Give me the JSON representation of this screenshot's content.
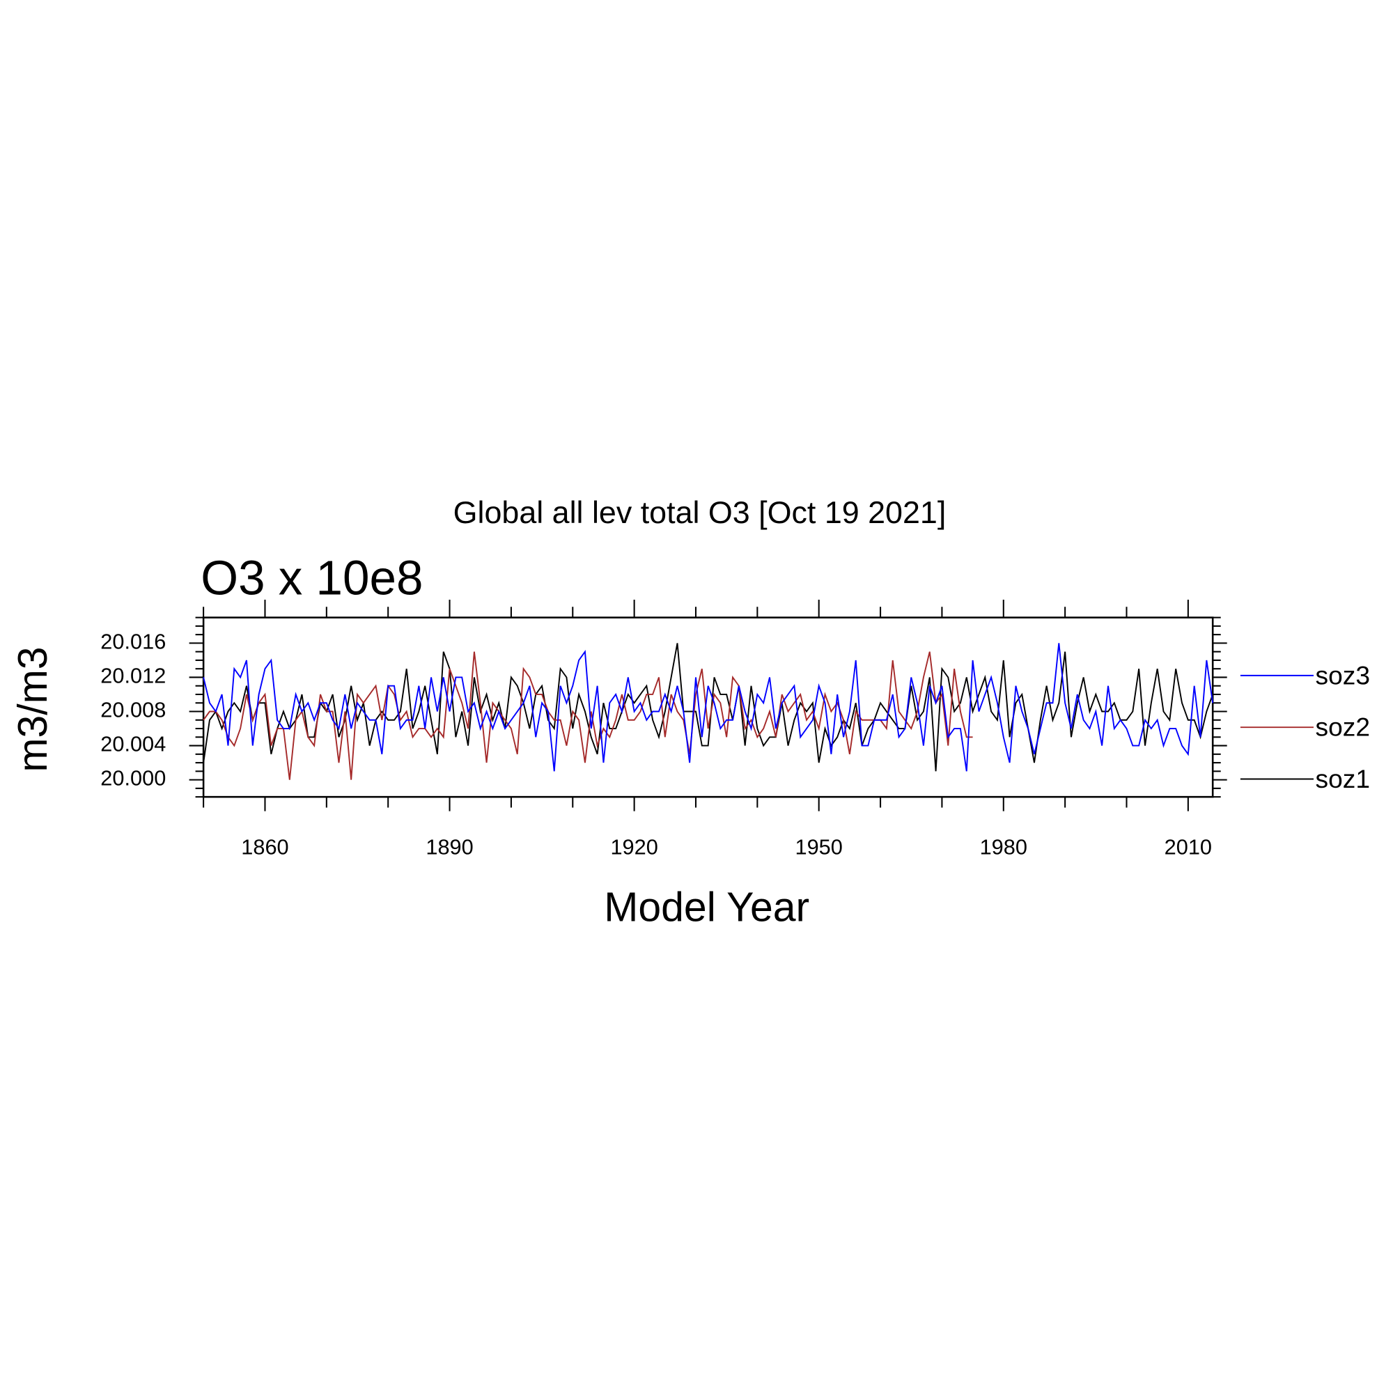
{
  "chart_data": {
    "type": "line",
    "title": "Global all lev total O3 [Oct 19 2021]",
    "subtitle": "O3 x 10e8",
    "ylabel": "m3/m3",
    "xlabel": "Model Year",
    "legend": "right",
    "xlim": [
      1850,
      2014
    ],
    "ylim": [
      19.998,
      20.019
    ],
    "xticks": [
      1860,
      1890,
      1920,
      1950,
      1980,
      2010
    ],
    "xminorticks": [
      1850,
      1870,
      1880,
      1900,
      1910,
      1930,
      1940,
      1960,
      1970,
      1990,
      2000
    ],
    "yticks": [
      {
        "value": 20,
        "label": "20.000"
      },
      20.004,
      20.008,
      20.012,
      20.016
    ],
    "yminorticks": [
      19.998,
      19.999,
      20.001,
      20.002,
      20.003,
      20.005,
      20.006,
      20.007,
      20.009,
      20.01,
      20.011,
      20.013,
      20.014,
      20.015,
      20.017,
      20.018,
      20.019
    ],
    "x": [
      1850,
      1851,
      1852,
      1853,
      1854,
      1855,
      1856,
      1857,
      1858,
      1859,
      1860,
      1861,
      1862,
      1863,
      1864,
      1865,
      1866,
      1867,
      1868,
      1869,
      1870,
      1871,
      1872,
      1873,
      1874,
      1875,
      1876,
      1877,
      1878,
      1879,
      1880,
      1881,
      1882,
      1883,
      1884,
      1885,
      1886,
      1887,
      1888,
      1889,
      1890,
      1891,
      1892,
      1893,
      1894,
      1895,
      1896,
      1897,
      1898,
      1899,
      1900,
      1901,
      1902,
      1903,
      1904,
      1905,
      1906,
      1907,
      1908,
      1909,
      1910,
      1911,
      1912,
      1913,
      1914,
      1915,
      1916,
      1917,
      1918,
      1919,
      1920,
      1921,
      1922,
      1923,
      1924,
      1925,
      1926,
      1927,
      1928,
      1929,
      1930,
      1931,
      1932,
      1933,
      1934,
      1935,
      1936,
      1937,
      1938,
      1939,
      1940,
      1941,
      1942,
      1943,
      1944,
      1945,
      1946,
      1947,
      1948,
      1949,
      1950,
      1951,
      1952,
      1953,
      1954,
      1955,
      1956,
      1957,
      1958,
      1959,
      1960,
      1961,
      1962,
      1963,
      1964,
      1965,
      1966,
      1967,
      1968,
      1969,
      1970,
      1971,
      1972,
      1973,
      1974,
      1975,
      1976,
      1977,
      1978,
      1979,
      1980,
      1981,
      1982,
      1983,
      1984,
      1985,
      1986,
      1987,
      1988,
      1989,
      1990,
      1991,
      1992,
      1993,
      1994,
      1995,
      1996,
      1997,
      1998,
      1999,
      2000,
      2001,
      2002,
      2003,
      2004,
      2005,
      2006,
      2007,
      2008,
      2009,
      2010,
      2011,
      2012,
      2013,
      2014
    ],
    "series": [
      {
        "name": "soz3",
        "color": "#0000ff",
        "values": [
          20.012,
          20.009,
          20.008,
          20.01,
          20.004,
          20.013,
          20.012,
          20.014,
          20.004,
          20.01,
          20.013,
          20.014,
          20.007,
          20.006,
          20.006,
          20.01,
          20.008,
          20.009,
          20.007,
          20.009,
          20.009,
          20.007,
          20.006,
          20.01,
          20.006,
          20.009,
          20.008,
          20.007,
          20.007,
          20.003,
          20.011,
          20.011,
          20.006,
          20.007,
          20.007,
          20.011,
          20.006,
          20.012,
          20.008,
          20.012,
          20.008,
          20.012,
          20.012,
          20.008,
          20.009,
          20.006,
          20.008,
          20.006,
          20.008,
          20.006,
          20.007,
          20.008,
          20.009,
          20.011,
          20.005,
          20.009,
          20.008,
          20.001,
          20.011,
          20.009,
          20.011,
          20.014,
          20.015,
          20.006,
          20.011,
          20.002,
          20.009,
          20.01,
          20.008,
          20.012,
          20.008,
          20.009,
          20.007,
          20.008,
          20.008,
          20.01,
          20.008,
          20.011,
          20.008,
          20.002,
          20.012,
          20.005,
          20.011,
          20.009,
          20.006,
          20.007,
          20.007,
          20.011,
          20.008,
          20.006,
          20.01,
          20.009,
          20.012,
          20.006,
          20.009,
          20.01,
          20.011,
          20.005,
          20.006,
          20.007,
          20.011,
          20.009,
          20.003,
          20.01,
          20.005,
          20.008,
          20.014,
          20.004,
          20.004,
          20.007,
          20.007,
          20.007,
          20.01,
          20.005,
          20.006,
          20.012,
          20.009,
          20.004,
          20.011,
          20.009,
          20.011,
          20.005,
          20.006,
          20.006,
          20.001,
          20.014,
          20.008,
          20.01,
          20.012,
          20.009,
          20.005,
          20.002,
          20.011,
          20.008,
          20.006,
          20.003,
          20.006,
          20.009,
          20.009,
          20.016,
          20.009,
          20.006,
          20.01,
          20.007,
          20.006,
          20.008,
          20.004,
          20.011,
          20.006,
          20.007,
          20.006,
          20.004,
          20.004,
          20.007,
          20.006,
          20.007,
          20.004,
          20.006,
          20.006,
          20.004,
          20.003,
          20.011,
          20.005,
          20.014,
          20.009
        ]
      },
      {
        "name": "soz2",
        "color": "#a52a2a",
        "values": [
          20.007,
          20.008,
          20.008,
          20.007,
          20.005,
          20.004,
          20.006,
          20.01,
          20.007,
          20.009,
          20.01,
          20.004,
          20.006,
          20.006,
          20.0,
          20.007,
          20.008,
          20.005,
          20.004,
          20.01,
          20.008,
          20.008,
          20.002,
          20.008,
          20.0,
          20.01,
          20.009,
          20.01,
          20.011,
          20.007,
          20.011,
          20.01,
          20.007,
          20.008,
          20.005,
          20.006,
          20.006,
          20.005,
          20.006,
          20.005,
          20.013,
          20.011,
          20.009,
          20.006,
          20.015,
          20.009,
          20.002,
          20.009,
          20.008,
          20.007,
          20.006,
          20.003,
          20.013,
          20.012,
          20.01,
          20.01,
          20.008,
          20.007,
          20.007,
          20.004,
          20.008,
          20.007,
          20.002,
          20.008,
          20.004,
          20.006,
          20.005,
          20.007,
          20.01,
          20.007,
          20.007,
          20.008,
          20.01,
          20.01,
          20.012,
          20.005,
          20.01,
          20.008,
          20.007,
          20.003,
          20.01,
          20.013,
          20.006,
          20.01,
          20.009,
          20.005,
          20.012,
          20.011,
          20.006,
          20.007,
          20.005,
          20.006,
          20.008,
          20.005,
          20.01,
          20.008,
          20.009,
          20.01,
          20.007,
          20.008,
          20.006,
          20.01,
          20.008,
          20.009,
          20.007,
          20.003,
          20.008,
          20.007,
          20.007,
          20.007,
          20.007,
          20.006,
          20.014,
          20.008,
          20.007,
          20.006,
          20.008,
          20.012,
          20.015,
          20.009,
          20.01,
          20.004,
          20.013,
          20.008,
          20.005,
          20.005,
          null,
          null,
          null,
          null,
          null,
          null,
          null,
          null,
          null,
          null,
          null,
          null,
          null,
          null,
          null,
          null,
          null,
          null,
          null,
          null,
          null,
          null,
          null,
          null,
          null,
          null,
          null,
          null,
          null,
          null,
          null,
          null,
          null,
          null,
          null,
          null,
          null,
          null,
          null
        ]
      },
      {
        "name": "soz1",
        "color": "#000000",
        "values": [
          20.002,
          20.007,
          20.008,
          20.006,
          20.008,
          20.009,
          20.008,
          20.011,
          20.007,
          20.009,
          20.009,
          20.003,
          20.006,
          20.008,
          20.006,
          20.007,
          20.01,
          20.005,
          20.005,
          20.009,
          20.008,
          20.01,
          20.005,
          20.007,
          20.011,
          20.007,
          20.009,
          20.004,
          20.007,
          20.008,
          20.007,
          20.007,
          20.008,
          20.013,
          20.006,
          20.008,
          20.011,
          20.007,
          20.003,
          20.015,
          20.013,
          20.005,
          20.008,
          20.004,
          20.012,
          20.008,
          20.01,
          20.007,
          20.009,
          20.006,
          20.012,
          20.011,
          20.009,
          20.006,
          20.01,
          20.011,
          20.007,
          20.006,
          20.013,
          20.012,
          20.006,
          20.01,
          20.008,
          20.005,
          20.003,
          20.009,
          20.006,
          20.006,
          20.008,
          20.01,
          20.009,
          20.01,
          20.011,
          20.007,
          20.005,
          20.008,
          20.012,
          20.016,
          20.008,
          20.008,
          20.008,
          20.004,
          20.004,
          20.012,
          20.01,
          20.01,
          20.007,
          20.011,
          20.004,
          20.011,
          20.006,
          20.004,
          20.005,
          20.005,
          20.009,
          20.004,
          20.007,
          20.009,
          20.008,
          20.009,
          20.002,
          20.006,
          20.004,
          20.005,
          20.007,
          20.006,
          20.009,
          20.004,
          20.006,
          20.007,
          20.009,
          20.008,
          20.007,
          20.006,
          20.006,
          20.011,
          20.007,
          20.008,
          20.012,
          20.001,
          20.013,
          20.012,
          20.008,
          20.009,
          20.012,
          20.008,
          20.01,
          20.012,
          20.008,
          20.007,
          20.014,
          20.005,
          20.009,
          20.01,
          20.006,
          20.002,
          20.007,
          20.011,
          20.007,
          20.009,
          20.015,
          20.005,
          20.009,
          20.012,
          20.008,
          20.01,
          20.008,
          20.008,
          20.009,
          20.007,
          20.007,
          20.008,
          20.013,
          20.004,
          20.009,
          20.013,
          20.008,
          20.007,
          20.013,
          20.009,
          20.007,
          20.007,
          20.005,
          20.008,
          20.01
        ]
      }
    ]
  }
}
